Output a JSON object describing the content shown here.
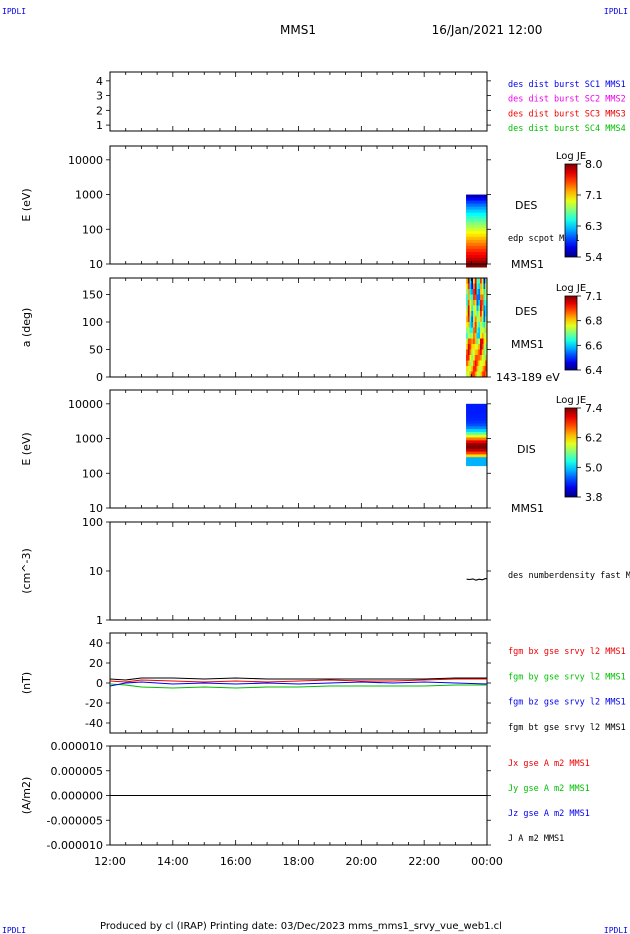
{
  "corner_label": "IPDLI",
  "title": "MMS1",
  "date_label": "16/Jan/2021 12:00",
  "footer": "Produced by cl (IRAP)   Printing date: 03/Dec/2023   mms_mms1_srvy_vue_web1.cl",
  "colors": {
    "blue": "#0000ee",
    "red": "#ee0000",
    "green": "#00c000",
    "magenta": "#ee00ee",
    "black": "#000000"
  },
  "chart_data": [
    {
      "type": "scatter",
      "panel": "availability",
      "yticks": [
        "1",
        "2",
        "3",
        "4"
      ],
      "ylim": [
        0.6,
        4.6
      ],
      "legend": [
        {
          "label": "des dist burst SC1 MMS1",
          "color": "#0000ee"
        },
        {
          "label": "des dist burst SC2 MMS2",
          "color": "#ee00ee"
        },
        {
          "label": "des dist burst SC3 MMS3",
          "color": "#ee0000"
        },
        {
          "label": "des dist burst SC4 MMS4",
          "color": "#00c000"
        }
      ]
    },
    {
      "type": "heatmap",
      "panel": "des-energy",
      "ylabel": "E (eV)",
      "yscale": "log",
      "yticks": [
        "10",
        "100",
        "1000",
        "10000"
      ],
      "ylim": [
        10,
        25000
      ],
      "side_labels": [
        "DES",
        "edp scpot MMS1",
        "MMS1"
      ],
      "colorbar": {
        "title": "Log JE",
        "ticks": [
          "5.4",
          "6.3",
          "7.1",
          "8.0"
        ],
        "range": [
          5.4,
          8.0
        ]
      },
      "data_start": "23:20",
      "data_end": "24:00",
      "energy_range_ev": [
        10,
        1000
      ]
    },
    {
      "type": "heatmap",
      "panel": "des-pitch-angle",
      "ylabel": "a (deg)",
      "yticks": [
        "0",
        "50",
        "100",
        "150"
      ],
      "ylim": [
        0,
        180
      ],
      "side_labels": [
        "DES",
        "MMS1",
        "143-189 eV"
      ],
      "colorbar": {
        "title": "Log JE",
        "ticks": [
          "6.4",
          "6.6",
          "6.8",
          "7.1"
        ],
        "range": [
          6.4,
          7.1
        ]
      },
      "data_start": "23:20",
      "data_end": "24:00"
    },
    {
      "type": "heatmap",
      "panel": "dis-energy",
      "ylabel": "E (eV)",
      "yscale": "log",
      "yticks": [
        "10",
        "100",
        "1000",
        "10000"
      ],
      "ylim": [
        10,
        25000
      ],
      "side_labels": [
        "DIS",
        "MMS1"
      ],
      "colorbar": {
        "title": "Log JE",
        "ticks": [
          "3.8",
          "5.0",
          "6.2",
          "7.4"
        ],
        "range": [
          3.8,
          7.4
        ]
      },
      "data_start": "23:20",
      "data_end": "24:00",
      "energy_range_ev": [
        200,
        10000
      ]
    },
    {
      "type": "line",
      "panel": "density",
      "ylabel": "(cm^-3)",
      "yscale": "log",
      "yticks": [
        "1",
        "10",
        "100"
      ],
      "ylim": [
        1,
        100
      ],
      "series": [
        {
          "name": "des numberdensity fast M",
          "color": "#000000",
          "x": [
            23.35,
            23.45,
            23.55,
            23.65,
            23.75,
            23.85,
            23.95,
            24.0
          ],
          "values": [
            6.8,
            6.7,
            6.9,
            6.5,
            6.8,
            6.6,
            7.0,
            6.9
          ]
        }
      ]
    },
    {
      "type": "line",
      "panel": "magnetic-field",
      "ylabel": "(nT)",
      "yticks": [
        "-40",
        "-20",
        "0",
        "20",
        "40"
      ],
      "ylim": [
        -50,
        50
      ],
      "series": [
        {
          "name": "fgm bx gse srvy l2 MMS1",
          "color": "#ee0000",
          "x": [
            12,
            12.5,
            13,
            14,
            15,
            16,
            17,
            18,
            19,
            20,
            21,
            22,
            23,
            24
          ],
          "values": [
            2,
            1,
            3,
            2,
            1,
            2,
            1,
            2,
            3,
            2,
            2,
            3,
            4,
            4
          ]
        },
        {
          "name": "fgm by gse srvy l2 MMS1",
          "color": "#00c000",
          "x": [
            12,
            12.5,
            13,
            14,
            15,
            16,
            17,
            18,
            19,
            20,
            21,
            22,
            23,
            24
          ],
          "values": [
            -1,
            -2,
            -4,
            -5,
            -4,
            -5,
            -4,
            -4,
            -3,
            -3,
            -3,
            -3,
            -2,
            -2
          ]
        },
        {
          "name": "fgm bz gse srvy l2 MMS1",
          "color": "#0000ee",
          "x": [
            12,
            12.5,
            13,
            14,
            15,
            16,
            17,
            18,
            19,
            20,
            21,
            22,
            23,
            24
          ],
          "values": [
            -3,
            0,
            1,
            -1,
            0,
            -1,
            0,
            -1,
            0,
            1,
            0,
            1,
            0,
            -1
          ]
        },
        {
          "name": "fgm bt gse srvy l2 MMS1",
          "color": "#000000",
          "x": [
            12,
            12.5,
            13,
            14,
            15,
            16,
            17,
            18,
            19,
            20,
            21,
            22,
            23,
            24
          ],
          "values": [
            4,
            3,
            5,
            5,
            4,
            5,
            4,
            4,
            4,
            4,
            4,
            4,
            5,
            5
          ]
        }
      ]
    },
    {
      "type": "line",
      "panel": "current-density",
      "ylabel": "(A/m2)",
      "yticks": [
        "-0.000010",
        "-0.000005",
        "0.000000",
        "0.000005",
        "0.000010"
      ],
      "ylim": [
        -1e-05,
        1e-05
      ],
      "series": [
        {
          "name": "Jx gse A m2 MMS1",
          "color": "#ee0000",
          "x": [],
          "values": []
        },
        {
          "name": "Jy gse A m2 MMS1",
          "color": "#00c000",
          "x": [],
          "values": []
        },
        {
          "name": "Jz gse A m2 MMS1",
          "color": "#0000ee",
          "x": [],
          "values": []
        },
        {
          "name": "J A m2 MMS1",
          "color": "#000000",
          "x": [
            12,
            14,
            16,
            18,
            20,
            22,
            24
          ],
          "values": [
            0,
            0,
            0,
            0,
            0,
            0,
            0
          ]
        }
      ]
    }
  ],
  "xaxis": {
    "ticks": [
      "12:00",
      "14:00",
      "16:00",
      "18:00",
      "20:00",
      "22:00",
      "00:00"
    ],
    "range_hours": [
      12,
      24
    ]
  }
}
